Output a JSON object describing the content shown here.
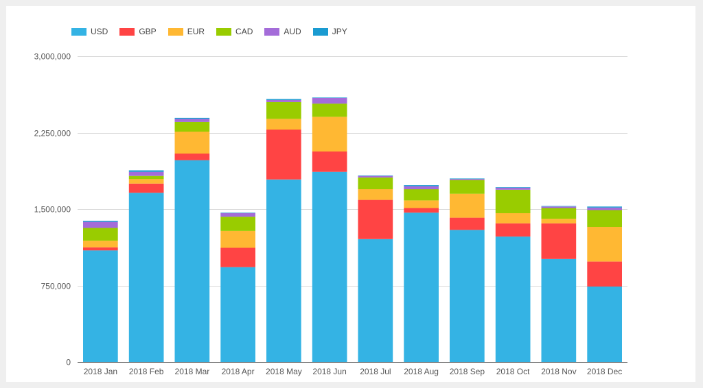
{
  "chart_data": {
    "type": "bar",
    "stacked": true,
    "title": "",
    "xlabel": "",
    "ylabel": "",
    "ylim": [
      0,
      3000000
    ],
    "yticks": [
      {
        "value": 0,
        "label": "0"
      },
      {
        "value": 750000,
        "label": "750,000"
      },
      {
        "value": 1500000,
        "label": "1,500,000"
      },
      {
        "value": 2250000,
        "label": "2,250,000"
      },
      {
        "value": 3000000,
        "label": "3,000,000"
      }
    ],
    "grid": true,
    "legend_position": "top-left",
    "categories": [
      "2018 Jan",
      "2018 Feb",
      "2018 Mar",
      "2018 Apr",
      "2018 May",
      "2018 Jun",
      "2018 Jul",
      "2018 Aug",
      "2018 Sep",
      "2018 Oct",
      "2018 Nov",
      "2018 Dec"
    ],
    "series": [
      {
        "name": "USD",
        "color": "#34b3e4",
        "values": [
          1095000,
          1660000,
          1980000,
          930000,
          1790000,
          1865000,
          1205000,
          1465000,
          1295000,
          1230000,
          1010000,
          740000
        ]
      },
      {
        "name": "GBP",
        "color": "#ff4444",
        "values": [
          30000,
          90000,
          65000,
          190000,
          490000,
          200000,
          385000,
          45000,
          120000,
          130000,
          350000,
          245000
        ]
      },
      {
        "name": "EUR",
        "color": "#ffb833",
        "values": [
          65000,
          45000,
          215000,
          165000,
          105000,
          340000,
          105000,
          75000,
          235000,
          100000,
          45000,
          340000
        ]
      },
      {
        "name": "CAD",
        "color": "#99cc00",
        "values": [
          125000,
          30000,
          95000,
          140000,
          165000,
          130000,
          115000,
          110000,
          135000,
          230000,
          105000,
          165000
        ]
      },
      {
        "name": "AUD",
        "color": "#a46cd9",
        "values": [
          60000,
          40000,
          30000,
          35000,
          20000,
          55000,
          15000,
          30000,
          10000,
          20000,
          15000,
          25000
        ]
      },
      {
        "name": "JPY",
        "color": "#1a9bd1",
        "values": [
          10000,
          15000,
          10000,
          5000,
          10000,
          5000,
          5000,
          10000,
          5000,
          5000,
          5000,
          10000
        ]
      }
    ]
  }
}
